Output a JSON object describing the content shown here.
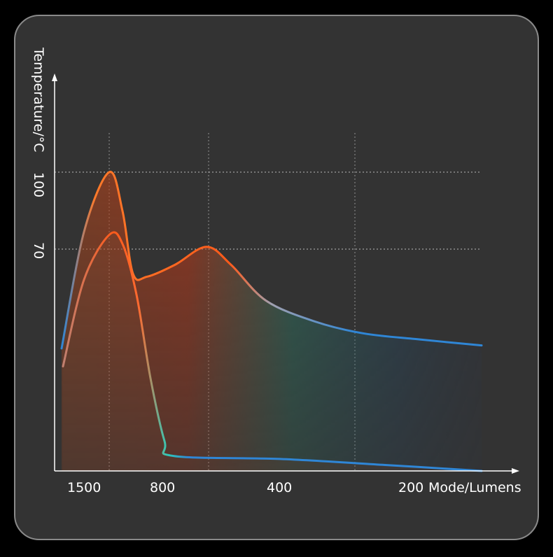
{
  "chart_data": {
    "type": "area",
    "ylabel": "Temperature/°C",
    "xlabel": "Mode/Lumens",
    "y_ticks": [
      100,
      70
    ],
    "x_ticks": [
      "1500",
      "800",
      "400",
      "200"
    ],
    "grid": "dotted",
    "series": [
      {
        "values": [
          41,
          80,
          100,
          87,
          66,
          65,
          69,
          75,
          69,
          57,
          50,
          46,
          44,
          42
        ],
        "color_start": "#ff5a1a",
        "color_end": "#2f86d6"
      },
      {
        "values": [
          35,
          64,
          79,
          76,
          59,
          31,
          10,
          5,
          4,
          2,
          0
        ],
        "color_start": "#ff5a1a",
        "color_end": "#2f86d6"
      }
    ],
    "colors": {
      "background": "#333333",
      "axis": "#ffffff",
      "orange": "#ff5a1a",
      "teal": "#2fc9b8",
      "blue": "#2f86d6"
    }
  }
}
